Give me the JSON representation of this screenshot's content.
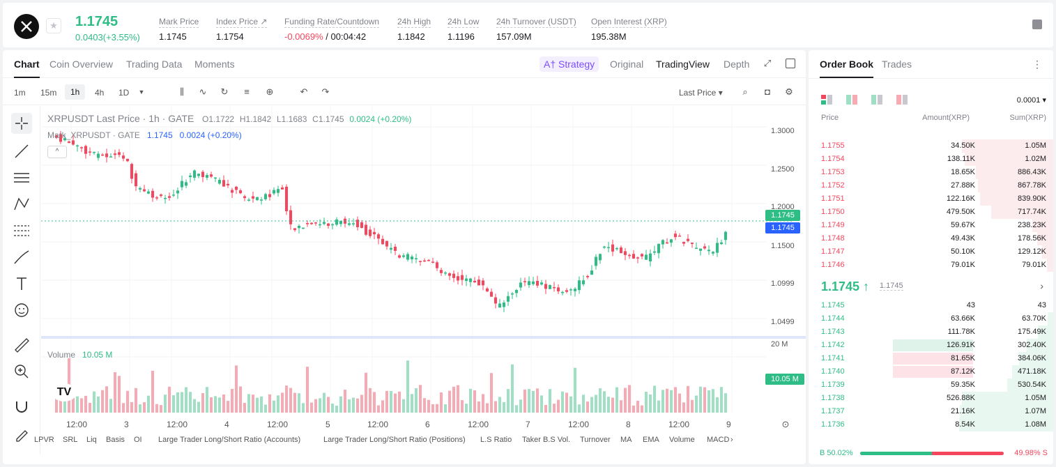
{
  "header": {
    "last_price": "1.1745",
    "change": "0.0403(+3.55%)",
    "stats": [
      {
        "label": "Mark Price",
        "value": "1.1745"
      },
      {
        "label": "Index Price ↗",
        "value": "1.1754"
      },
      {
        "label": "Funding Rate/Countdown",
        "value_neg": "-0.0069%",
        "value": " / 00:04:42"
      },
      {
        "label": "24h High",
        "value": "1.1842"
      },
      {
        "label": "24h Low",
        "value": "1.1196"
      },
      {
        "label": "24h Turnover (USDT)",
        "value": "157.09M"
      },
      {
        "label": "Open Interest (XRP)",
        "value": "195.38M"
      }
    ]
  },
  "chart_tabs": [
    "Chart",
    "Coin Overview",
    "Trading Data",
    "Moments"
  ],
  "view_tabs": {
    "strategy": "A† Strategy",
    "original": "Original",
    "tradingview": "TradingView",
    "depth": "Depth"
  },
  "timeframes": [
    "1m",
    "15m",
    "1h",
    "4h",
    "1D"
  ],
  "price_type": "Last Price ▾",
  "legend": {
    "symbol": "XRPUSDT Last Price · 1h · GATE",
    "o": "O1.1722",
    "h": "H1.1842",
    "l": "L1.1683",
    "c": "C1.1745",
    "chg": "0.0024 (+0.20%)",
    "mark_name": "Mark_XRPUSDT · GATE",
    "mark_val": "1.1745",
    "mark_chg": "0.0024 (+0.20%)"
  },
  "volume_legend": {
    "label": "Volume",
    "value": "10.05 M"
  },
  "price_tags": {
    "last": "1.1745",
    "mark": "1.1745",
    "volume": "10.05 M"
  },
  "y_axis": [
    "1.3000",
    "1.2500",
    "1.2000",
    "1.1500",
    "1.0999",
    "1.0499",
    "20 M"
  ],
  "x_axis": [
    "12:00",
    "3",
    "12:00",
    "4",
    "12:00",
    "5",
    "12:00",
    "6",
    "12:00",
    "7",
    "12:00",
    "8",
    "12:00",
    "9"
  ],
  "indicators": [
    "LPVR",
    "SRL",
    "Liq",
    "Basis",
    "OI",
    "Large Trader Long/Short Ratio (Accounts)",
    "Large Trader Long/Short Ratio (Positions)",
    "L.S Ratio",
    "Taker B.S Vol.",
    "Turnover",
    "MA",
    "EMA",
    "Volume",
    "MACD"
  ],
  "colors": {
    "up": "#2ebd85",
    "down": "#f6465d",
    "volume_up": "#9fe0c4",
    "volume_down": "#f7a9b4",
    "accent": "#7b4dff",
    "mark_line": "#2962ff"
  },
  "orderbook": {
    "tabs": [
      "Order Book",
      "Trades"
    ],
    "precision": "0.0001 ▾",
    "headers": {
      "price": "Price",
      "amount": "Amount(XRP)",
      "sum": "Sum(XRP)"
    },
    "asks": [
      {
        "price": "1.1755",
        "amount": "34.50K",
        "sum": "1.05M",
        "depth": 0.97
      },
      {
        "price": "1.1754",
        "amount": "138.11K",
        "sum": "1.02M",
        "depth": 0.94
      },
      {
        "price": "1.1753",
        "amount": "18.65K",
        "sum": "886.43K",
        "depth": 0.82
      },
      {
        "price": "1.1752",
        "amount": "27.88K",
        "sum": "867.78K",
        "depth": 0.8
      },
      {
        "price": "1.1751",
        "amount": "122.16K",
        "sum": "839.90K",
        "depth": 0.78
      },
      {
        "price": "1.1750",
        "amount": "479.50K",
        "sum": "717.74K",
        "depth": 0.66
      },
      {
        "price": "1.1749",
        "amount": "59.67K",
        "sum": "238.23K",
        "depth": 0.22
      },
      {
        "price": "1.1748",
        "amount": "49.43K",
        "sum": "178.56K",
        "depth": 0.17
      },
      {
        "price": "1.1747",
        "amount": "50.10K",
        "sum": "129.12K",
        "depth": 0.12
      },
      {
        "price": "1.1746",
        "amount": "79.01K",
        "sum": "79.01K",
        "depth": 0.07
      }
    ],
    "mid": {
      "price": "1.1745 ↑",
      "mark": "1.1745"
    },
    "bids": [
      {
        "price": "1.1745",
        "amount": "43",
        "sum": "43",
        "depth": 0.0
      },
      {
        "price": "1.1744",
        "amount": "63.66K",
        "sum": "63.70K",
        "depth": 0.06
      },
      {
        "price": "1.1743",
        "amount": "111.78K",
        "sum": "175.49K",
        "depth": 0.16
      },
      {
        "price": "1.1742",
        "amount": "126.91K",
        "sum": "302.40K",
        "depth": 0.28,
        "hl": "up"
      },
      {
        "price": "1.1741",
        "amount": "81.65K",
        "sum": "384.06K",
        "depth": 0.36,
        "hl": "down"
      },
      {
        "price": "1.1740",
        "amount": "87.12K",
        "sum": "471.18K",
        "depth": 0.44,
        "hl": "down"
      },
      {
        "price": "1.1739",
        "amount": "59.35K",
        "sum": "530.54K",
        "depth": 0.49
      },
      {
        "price": "1.1738",
        "amount": "526.88K",
        "sum": "1.05M",
        "depth": 0.97
      },
      {
        "price": "1.1737",
        "amount": "21.16K",
        "sum": "1.07M",
        "depth": 0.99
      },
      {
        "price": "1.1736",
        "amount": "8.54K",
        "sum": "1.08M",
        "depth": 1.0
      }
    ],
    "buy_ratio": "B 50.02%",
    "sell_ratio": "49.98% S",
    "buy_fraction": 0.5002
  }
}
